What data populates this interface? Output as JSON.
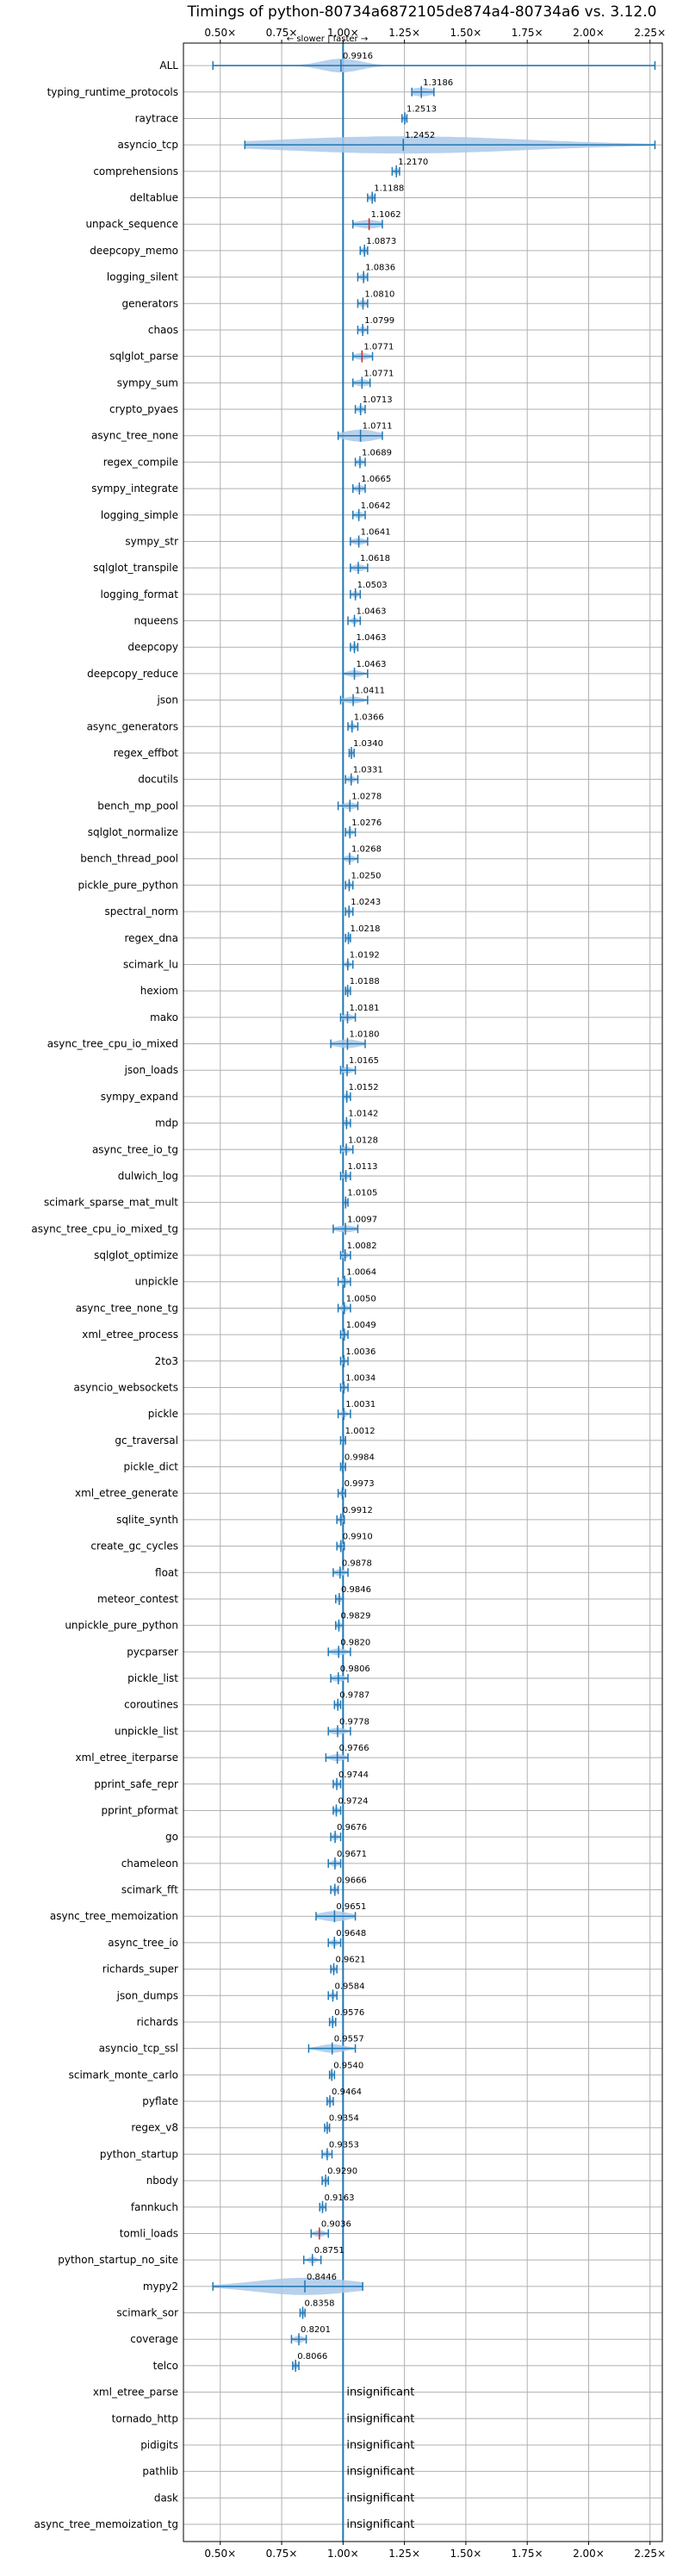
{
  "chart_data": {
    "type": "violin",
    "title": "Timings of python-80734a6872105de874a4-80734a6 vs. 3.12.0",
    "direction_label": "← slower | faster →",
    "xlim": [
      0.35,
      2.3
    ],
    "x_ticks": [
      0.5,
      0.75,
      1.0,
      1.25,
      1.5,
      1.75,
      2.0,
      2.25
    ],
    "x_tick_labels": [
      "0.50×",
      "0.75×",
      "1.00×",
      "1.25×",
      "1.50×",
      "1.75×",
      "2.00×",
      "2.25×"
    ],
    "reference_line": 1.0,
    "grid": true,
    "colors": {
      "body": "#aac8e8",
      "line": "#1f77b4",
      "highlight": "#d62728"
    },
    "benchmarks": [
      {
        "name": "ALL",
        "label": "0.9916",
        "value": 0.9916,
        "min": 0.47,
        "max": 2.27,
        "spread": 0.08
      },
      {
        "name": "typing_runtime_protocols",
        "label": "1.3186",
        "value": 1.3186,
        "min": 1.28,
        "max": 1.37,
        "spread": 0.05
      },
      {
        "name": "raytrace",
        "label": "1.2513",
        "value": 1.2513,
        "min": 1.24,
        "max": 1.26,
        "spread": 0.008
      },
      {
        "name": "asyncio_tcp",
        "label": "1.2452",
        "value": 1.2452,
        "min": 0.6,
        "max": 2.27,
        "spread": 0.5
      },
      {
        "name": "comprehensions",
        "label": "1.2170",
        "value": 1.217,
        "min": 1.2,
        "max": 1.23,
        "spread": 0.01
      },
      {
        "name": "deltablue",
        "label": "1.1188",
        "value": 1.1188,
        "min": 1.1,
        "max": 1.13,
        "spread": 0.015
      },
      {
        "name": "unpack_sequence",
        "label": "1.1062",
        "value": 1.1062,
        "min": 1.04,
        "max": 1.16,
        "spread": 0.05,
        "highlight": true
      },
      {
        "name": "deepcopy_memo",
        "label": "1.0873",
        "value": 1.0873,
        "min": 1.07,
        "max": 1.1,
        "spread": 0.012
      },
      {
        "name": "logging_silent",
        "label": "1.0836",
        "value": 1.0836,
        "min": 1.06,
        "max": 1.1,
        "spread": 0.015
      },
      {
        "name": "generators",
        "label": "1.0810",
        "value": 1.081,
        "min": 1.06,
        "max": 1.1,
        "spread": 0.015
      },
      {
        "name": "chaos",
        "label": "1.0799",
        "value": 1.0799,
        "min": 1.06,
        "max": 1.1,
        "spread": 0.012
      },
      {
        "name": "sqlglot_parse",
        "label": "1.0771",
        "value": 1.0771,
        "min": 1.04,
        "max": 1.12,
        "spread": 0.03,
        "highlight": true
      },
      {
        "name": "sympy_sum",
        "label": "1.0771",
        "value": 1.0771,
        "min": 1.04,
        "max": 1.11,
        "spread": 0.03
      },
      {
        "name": "crypto_pyaes",
        "label": "1.0713",
        "value": 1.0713,
        "min": 1.05,
        "max": 1.09,
        "spread": 0.015
      },
      {
        "name": "async_tree_none",
        "label": "1.0711",
        "value": 1.0711,
        "min": 0.98,
        "max": 1.16,
        "spread": 0.07
      },
      {
        "name": "regex_compile",
        "label": "1.0689",
        "value": 1.0689,
        "min": 1.05,
        "max": 1.09,
        "spread": 0.012
      },
      {
        "name": "sympy_integrate",
        "label": "1.0665",
        "value": 1.0665,
        "min": 1.04,
        "max": 1.09,
        "spread": 0.02
      },
      {
        "name": "logging_simple",
        "label": "1.0642",
        "value": 1.0642,
        "min": 1.04,
        "max": 1.09,
        "spread": 0.015
      },
      {
        "name": "sympy_str",
        "label": "1.0641",
        "value": 1.0641,
        "min": 1.03,
        "max": 1.1,
        "spread": 0.025
      },
      {
        "name": "sqlglot_transpile",
        "label": "1.0618",
        "value": 1.0618,
        "min": 1.03,
        "max": 1.1,
        "spread": 0.025
      },
      {
        "name": "logging_format",
        "label": "1.0503",
        "value": 1.0503,
        "min": 1.03,
        "max": 1.07,
        "spread": 0.012
      },
      {
        "name": "nqueens",
        "label": "1.0463",
        "value": 1.0463,
        "min": 1.02,
        "max": 1.07,
        "spread": 0.012
      },
      {
        "name": "deepcopy",
        "label": "1.0463",
        "value": 1.0463,
        "min": 1.03,
        "max": 1.06,
        "spread": 0.012
      },
      {
        "name": "deepcopy_reduce",
        "label": "1.0463",
        "value": 1.0463,
        "min": 1.0,
        "max": 1.1,
        "spread": 0.03
      },
      {
        "name": "json",
        "label": "1.0411",
        "value": 1.0411,
        "min": 0.99,
        "max": 1.1,
        "spread": 0.035
      },
      {
        "name": "async_generators",
        "label": "1.0366",
        "value": 1.0366,
        "min": 1.02,
        "max": 1.06,
        "spread": 0.012
      },
      {
        "name": "regex_effbot",
        "label": "1.0340",
        "value": 1.034,
        "min": 1.025,
        "max": 1.045,
        "spread": 0.008
      },
      {
        "name": "docutils",
        "label": "1.0331",
        "value": 1.0331,
        "min": 1.01,
        "max": 1.06,
        "spread": 0.015
      },
      {
        "name": "bench_mp_pool",
        "label": "1.0278",
        "value": 1.0278,
        "min": 0.98,
        "max": 1.06,
        "spread": 0.025
      },
      {
        "name": "sqlglot_normalize",
        "label": "1.0276",
        "value": 1.0276,
        "min": 1.01,
        "max": 1.05,
        "spread": 0.012
      },
      {
        "name": "bench_thread_pool",
        "label": "1.0268",
        "value": 1.0268,
        "min": 1.0,
        "max": 1.06,
        "spread": 0.02
      },
      {
        "name": "pickle_pure_python",
        "label": "1.0250",
        "value": 1.025,
        "min": 1.01,
        "max": 1.04,
        "spread": 0.01
      },
      {
        "name": "spectral_norm",
        "label": "1.0243",
        "value": 1.0243,
        "min": 1.01,
        "max": 1.04,
        "spread": 0.01
      },
      {
        "name": "regex_dna",
        "label": "1.0218",
        "value": 1.0218,
        "min": 1.01,
        "max": 1.03,
        "spread": 0.01
      },
      {
        "name": "scimark_lu",
        "label": "1.0192",
        "value": 1.0192,
        "min": 1.0,
        "max": 1.04,
        "spread": 0.01
      },
      {
        "name": "hexiom",
        "label": "1.0188",
        "value": 1.0188,
        "min": 1.01,
        "max": 1.03,
        "spread": 0.008
      },
      {
        "name": "mako",
        "label": "1.0181",
        "value": 1.0181,
        "min": 0.99,
        "max": 1.05,
        "spread": 0.02
      },
      {
        "name": "async_tree_cpu_io_mixed",
        "label": "1.0180",
        "value": 1.018,
        "min": 0.95,
        "max": 1.09,
        "spread": 0.05
      },
      {
        "name": "json_loads",
        "label": "1.0165",
        "value": 1.0165,
        "min": 0.99,
        "max": 1.05,
        "spread": 0.02
      },
      {
        "name": "sympy_expand",
        "label": "1.0152",
        "value": 1.0152,
        "min": 1.0,
        "max": 1.03,
        "spread": 0.01
      },
      {
        "name": "mdp",
        "label": "1.0142",
        "value": 1.0142,
        "min": 1.0,
        "max": 1.03,
        "spread": 0.01
      },
      {
        "name": "async_tree_io_tg",
        "label": "1.0128",
        "value": 1.0128,
        "min": 0.99,
        "max": 1.04,
        "spread": 0.015
      },
      {
        "name": "dulwich_log",
        "label": "1.0113",
        "value": 1.0113,
        "min": 0.99,
        "max": 1.03,
        "spread": 0.012
      },
      {
        "name": "scimark_sparse_mat_mult",
        "label": "1.0105",
        "value": 1.0105,
        "min": 1.0,
        "max": 1.02,
        "spread": 0.008
      },
      {
        "name": "async_tree_cpu_io_mixed_tg",
        "label": "1.0097",
        "value": 1.0097,
        "min": 0.96,
        "max": 1.06,
        "spread": 0.04
      },
      {
        "name": "sqlglot_optimize",
        "label": "1.0082",
        "value": 1.0082,
        "min": 0.99,
        "max": 1.03,
        "spread": 0.012
      },
      {
        "name": "unpickle",
        "label": "1.0064",
        "value": 1.0064,
        "min": 0.98,
        "max": 1.03,
        "spread": 0.015
      },
      {
        "name": "async_tree_none_tg",
        "label": "1.0050",
        "value": 1.005,
        "min": 0.98,
        "max": 1.03,
        "spread": 0.015
      },
      {
        "name": "xml_etree_process",
        "label": "1.0049",
        "value": 1.0049,
        "min": 0.99,
        "max": 1.02,
        "spread": 0.01
      },
      {
        "name": "2to3",
        "label": "1.0036",
        "value": 1.0036,
        "min": 0.99,
        "max": 1.02,
        "spread": 0.008
      },
      {
        "name": "asyncio_websockets",
        "label": "1.0034",
        "value": 1.0034,
        "min": 0.99,
        "max": 1.02,
        "spread": 0.008
      },
      {
        "name": "pickle",
        "label": "1.0031",
        "value": 1.0031,
        "min": 0.98,
        "max": 1.03,
        "spread": 0.012
      },
      {
        "name": "gc_traversal",
        "label": "1.0012",
        "value": 1.0012,
        "min": 0.99,
        "max": 1.01,
        "spread": 0.006
      },
      {
        "name": "pickle_dict",
        "label": "0.9984",
        "value": 0.9984,
        "min": 0.99,
        "max": 1.01,
        "spread": 0.008
      },
      {
        "name": "xml_etree_generate",
        "label": "0.9973",
        "value": 0.9973,
        "min": 0.98,
        "max": 1.01,
        "spread": 0.01
      },
      {
        "name": "sqlite_synth",
        "label": "0.9912",
        "value": 0.9912,
        "min": 0.975,
        "max": 1.005,
        "spread": 0.01
      },
      {
        "name": "create_gc_cycles",
        "label": "0.9910",
        "value": 0.991,
        "min": 0.975,
        "max": 1.005,
        "spread": 0.01
      },
      {
        "name": "float",
        "label": "0.9878",
        "value": 0.9878,
        "min": 0.96,
        "max": 1.02,
        "spread": 0.02
      },
      {
        "name": "meteor_contest",
        "label": "0.9846",
        "value": 0.9846,
        "min": 0.97,
        "max": 1.0,
        "spread": 0.01
      },
      {
        "name": "unpickle_pure_python",
        "label": "0.9829",
        "value": 0.9829,
        "min": 0.97,
        "max": 1.0,
        "spread": 0.01
      },
      {
        "name": "pycparser",
        "label": "0.9820",
        "value": 0.982,
        "min": 0.94,
        "max": 1.03,
        "spread": 0.03
      },
      {
        "name": "pickle_list",
        "label": "0.9806",
        "value": 0.9806,
        "min": 0.95,
        "max": 1.02,
        "spread": 0.025
      },
      {
        "name": "coroutines",
        "label": "0.9787",
        "value": 0.9787,
        "min": 0.965,
        "max": 0.99,
        "spread": 0.008
      },
      {
        "name": "unpickle_list",
        "label": "0.9778",
        "value": 0.9778,
        "min": 0.94,
        "max": 1.03,
        "spread": 0.03
      },
      {
        "name": "xml_etree_iterparse",
        "label": "0.9766",
        "value": 0.9766,
        "min": 0.93,
        "max": 1.02,
        "spread": 0.03
      },
      {
        "name": "pprint_safe_repr",
        "label": "0.9744",
        "value": 0.9744,
        "min": 0.96,
        "max": 0.99,
        "spread": 0.01
      },
      {
        "name": "pprint_pformat",
        "label": "0.9724",
        "value": 0.9724,
        "min": 0.96,
        "max": 0.99,
        "spread": 0.01
      },
      {
        "name": "go",
        "label": "0.9676",
        "value": 0.9676,
        "min": 0.95,
        "max": 0.99,
        "spread": 0.012
      },
      {
        "name": "chameleon",
        "label": "0.9671",
        "value": 0.9671,
        "min": 0.94,
        "max": 0.99,
        "spread": 0.015
      },
      {
        "name": "scimark_fft",
        "label": "0.9666",
        "value": 0.9666,
        "min": 0.95,
        "max": 0.98,
        "spread": 0.01
      },
      {
        "name": "async_tree_memoization",
        "label": "0.9651",
        "value": 0.9651,
        "min": 0.89,
        "max": 1.05,
        "spread": 0.06
      },
      {
        "name": "async_tree_io",
        "label": "0.9648",
        "value": 0.9648,
        "min": 0.94,
        "max": 0.99,
        "spread": 0.015
      },
      {
        "name": "richards_super",
        "label": "0.9621",
        "value": 0.9621,
        "min": 0.95,
        "max": 0.975,
        "spread": 0.008
      },
      {
        "name": "json_dumps",
        "label": "0.9584",
        "value": 0.9584,
        "min": 0.94,
        "max": 0.975,
        "spread": 0.01
      },
      {
        "name": "richards",
        "label": "0.9576",
        "value": 0.9576,
        "min": 0.945,
        "max": 0.97,
        "spread": 0.008
      },
      {
        "name": "asyncio_tcp_ssl",
        "label": "0.9557",
        "value": 0.9557,
        "min": 0.86,
        "max": 1.05,
        "spread": 0.05
      },
      {
        "name": "scimark_monte_carlo",
        "label": "0.9540",
        "value": 0.954,
        "min": 0.945,
        "max": 0.965,
        "spread": 0.006
      },
      {
        "name": "pyflate",
        "label": "0.9464",
        "value": 0.9464,
        "min": 0.935,
        "max": 0.96,
        "spread": 0.008
      },
      {
        "name": "regex_v8",
        "label": "0.9354",
        "value": 0.9354,
        "min": 0.925,
        "max": 0.945,
        "spread": 0.006
      },
      {
        "name": "python_startup",
        "label": "0.9353",
        "value": 0.9353,
        "min": 0.915,
        "max": 0.955,
        "spread": 0.012
      },
      {
        "name": "nbody",
        "label": "0.9290",
        "value": 0.929,
        "min": 0.915,
        "max": 0.94,
        "spread": 0.008
      },
      {
        "name": "fannkuch",
        "label": "0.9163",
        "value": 0.9163,
        "min": 0.905,
        "max": 0.93,
        "spread": 0.008
      },
      {
        "name": "tomli_loads",
        "label": "0.9036",
        "value": 0.9036,
        "min": 0.87,
        "max": 0.94,
        "spread": 0.02,
        "highlight": true
      },
      {
        "name": "python_startup_no_site",
        "label": "0.8751",
        "value": 0.8751,
        "min": 0.84,
        "max": 0.91,
        "spread": 0.015
      },
      {
        "name": "mypy2",
        "label": "0.8446",
        "value": 0.8446,
        "min": 0.47,
        "max": 1.08,
        "spread": 0.2
      },
      {
        "name": "scimark_sor",
        "label": "0.8358",
        "value": 0.8358,
        "min": 0.825,
        "max": 0.845,
        "spread": 0.006
      },
      {
        "name": "coverage",
        "label": "0.8201",
        "value": 0.8201,
        "min": 0.79,
        "max": 0.85,
        "spread": 0.02
      },
      {
        "name": "telco",
        "label": "0.8066",
        "value": 0.8066,
        "min": 0.795,
        "max": 0.82,
        "spread": 0.008
      },
      {
        "name": "xml_etree_parse",
        "label": "insignificant"
      },
      {
        "name": "tornado_http",
        "label": "insignificant"
      },
      {
        "name": "pidigits",
        "label": "insignificant"
      },
      {
        "name": "pathlib",
        "label": "insignificant"
      },
      {
        "name": "dask",
        "label": "insignificant"
      },
      {
        "name": "async_tree_memoization_tg",
        "label": "insignificant"
      }
    ]
  }
}
